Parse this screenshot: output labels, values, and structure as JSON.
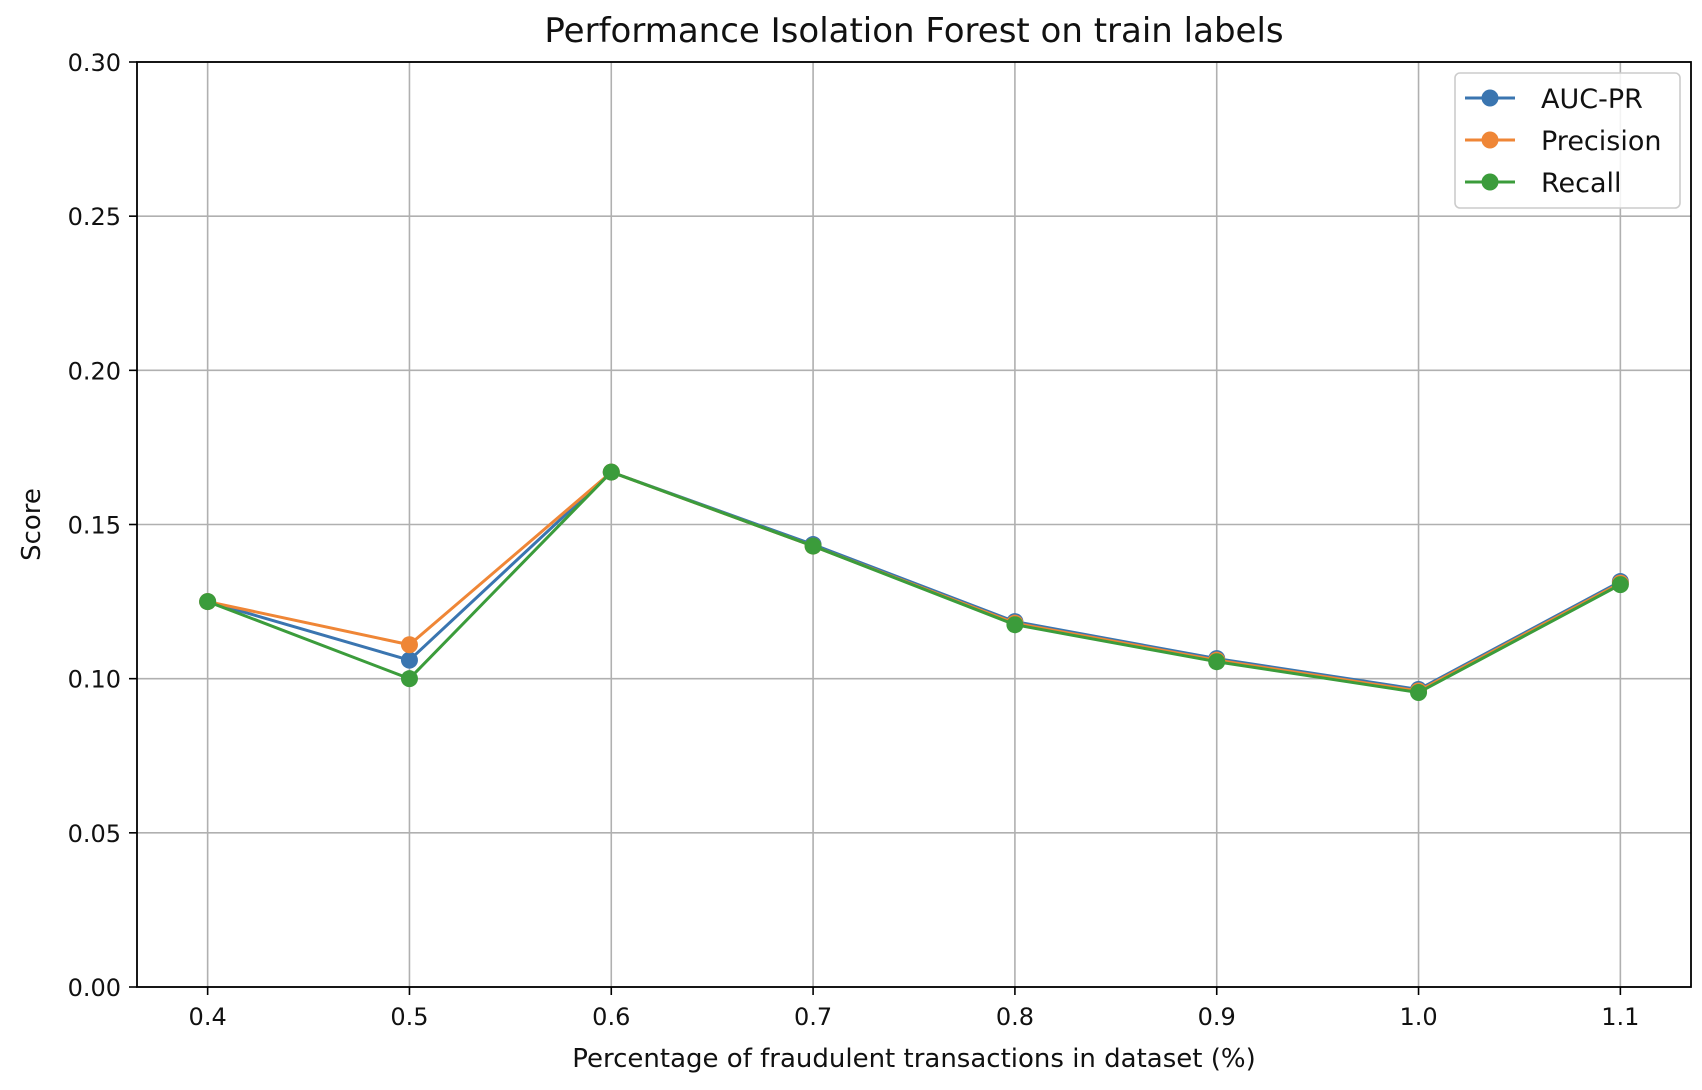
{
  "chart_data": {
    "type": "line",
    "title": "Performance Isolation Forest on train labels",
    "xlabel": "Percentage of fraudulent transactions in dataset (%)",
    "ylabel": "Score",
    "x": [
      0.4,
      0.5,
      0.6,
      0.7,
      0.8,
      0.9,
      1.0,
      1.1
    ],
    "x_tick_labels": [
      "0.4",
      "0.5",
      "0.6",
      "0.7",
      "0.8",
      "0.9",
      "1.0",
      "1.1"
    ],
    "y_tick_labels": [
      "0.00",
      "0.05",
      "0.10",
      "0.15",
      "0.20",
      "0.25",
      "0.30"
    ],
    "y_ticks": [
      0,
      0.05,
      0.1,
      0.15,
      0.2,
      0.25,
      0.3
    ],
    "xlim": [
      0.365,
      1.135
    ],
    "ylim": [
      0,
      0.3
    ],
    "grid": true,
    "legend_position": "top-right",
    "series": [
      {
        "name": "AUC-PR",
        "color": "#3a75b0",
        "marker": "circle",
        "values": [
          0.125,
          0.106,
          0.167,
          0.1435,
          0.1185,
          0.1065,
          0.0965,
          0.1315
        ]
      },
      {
        "name": "Precision",
        "color": "#ef8636",
        "marker": "circle",
        "values": [
          0.125,
          0.111,
          0.167,
          0.143,
          0.118,
          0.106,
          0.096,
          0.131
        ]
      },
      {
        "name": "Recall",
        "color": "#3b9c3b",
        "marker": "circle",
        "values": [
          0.125,
          0.1,
          0.167,
          0.143,
          0.1175,
          0.1055,
          0.0955,
          0.1305
        ]
      }
    ]
  }
}
